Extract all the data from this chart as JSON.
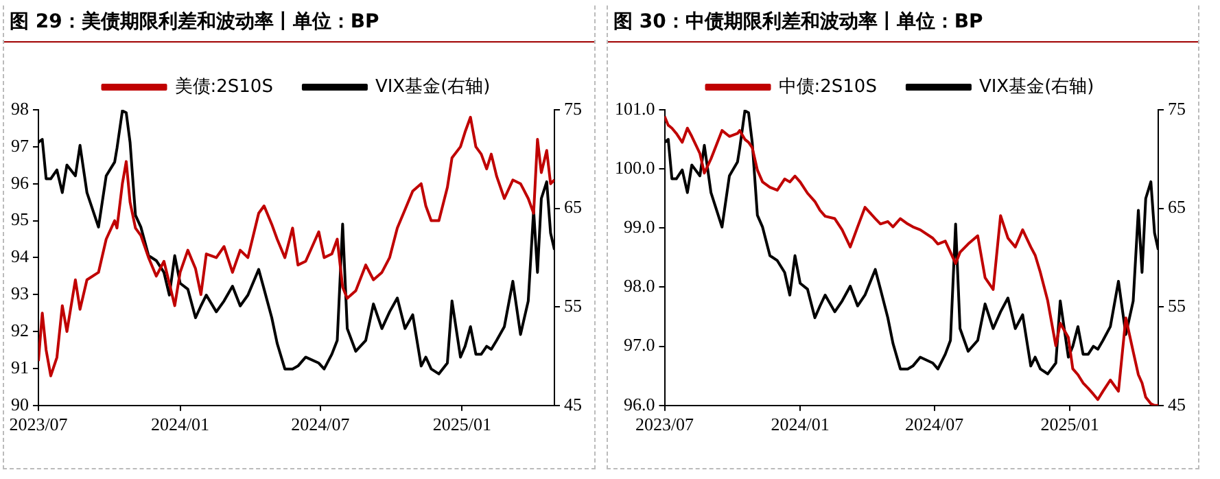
{
  "chart_data": [
    {
      "type": "line",
      "title": "图 29：美债期限利差和波动率丨单位：BP",
      "legend": "top",
      "grid": false,
      "marker": "none",
      "line_style": "solid",
      "x": [
        "2023-07-01",
        "2023-07-06",
        "2023-07-11",
        "2023-07-17",
        "2023-07-25",
        "2023-08-01",
        "2023-08-07",
        "2023-08-18",
        "2023-08-24",
        "2023-09-02",
        "2023-09-17",
        "2023-09-27",
        "2023-10-08",
        "2023-10-11",
        "2023-10-18",
        "2023-10-23",
        "2023-10-28",
        "2023-11-04",
        "2023-11-11",
        "2023-11-21",
        "2023-12-01",
        "2023-12-11",
        "2023-12-18",
        "2023-12-25",
        "2024-01-01",
        "2024-01-11",
        "2024-01-21",
        "2024-01-28",
        "2024-02-04",
        "2024-02-17",
        "2024-02-27",
        "2024-03-09",
        "2024-03-19",
        "2024-03-29",
        "2024-04-12",
        "2024-04-19",
        "2024-04-29",
        "2024-05-06",
        "2024-05-16",
        "2024-05-26",
        "2024-06-02",
        "2024-06-12",
        "2024-06-29",
        "2024-07-06",
        "2024-07-16",
        "2024-07-23",
        "2024-07-30",
        "2024-08-05",
        "2024-08-16",
        "2024-08-29",
        "2024-09-08",
        "2024-09-19",
        "2024-09-29",
        "2024-10-09",
        "2024-10-19",
        "2024-10-29",
        "2024-11-09",
        "2024-11-15",
        "2024-11-22",
        "2024-12-02",
        "2024-12-13",
        "2024-12-19",
        "2024-12-30",
        "2025-01-05",
        "2025-01-12",
        "2025-01-19",
        "2025-01-26",
        "2025-02-02",
        "2025-02-08",
        "2025-02-15",
        "2025-02-25",
        "2025-03-08",
        "2025-03-18",
        "2025-03-28",
        "2025-04-04",
        "2025-04-09",
        "2025-04-14",
        "2025-04-21",
        "2025-04-26",
        "2025-05-01"
      ],
      "xlim": [
        "2023-07-01",
        "2025-05-01"
      ],
      "xticks": [
        {
          "value": "2023-07-01",
          "label": "2023/07"
        },
        {
          "value": "2024-01-01",
          "label": "2024/01"
        },
        {
          "value": "2024-07-01",
          "label": "2024/07"
        },
        {
          "value": "2025-01-01",
          "label": "2025/01"
        }
      ],
      "ylim": [
        90,
        98
      ],
      "yticks": [
        90,
        91,
        92,
        93,
        94,
        95,
        96,
        97,
        98
      ],
      "y2lim": [
        45,
        75
      ],
      "y2ticks": [
        45,
        55,
        65,
        75
      ],
      "series": [
        {
          "name": "美债:2S10S",
          "color": "#c00000",
          "values": [
            91.2,
            92.5,
            91.5,
            90.8,
            91.3,
            92.7,
            92.0,
            93.4,
            92.6,
            93.4,
            93.6,
            94.5,
            95.0,
            94.8,
            96.0,
            96.6,
            95.5,
            94.8,
            94.6,
            94.0,
            93.5,
            93.9,
            93.3,
            92.7,
            93.6,
            94.2,
            93.7,
            93.0,
            94.1,
            94.0,
            94.3,
            93.6,
            94.2,
            94.0,
            95.2,
            95.4,
            94.9,
            94.5,
            94.0,
            94.8,
            93.8,
            93.9,
            94.7,
            94.0,
            94.1,
            94.5,
            93.2,
            92.9,
            93.1,
            93.8,
            93.4,
            93.6,
            94.0,
            94.8,
            95.3,
            95.8,
            96.0,
            95.4,
            95.0,
            95.0,
            95.9,
            96.7,
            97.0,
            97.4,
            97.8,
            97.0,
            96.8,
            96.4,
            96.8,
            96.2,
            95.6,
            96.1,
            96.0,
            95.6,
            95.2,
            97.2,
            96.3,
            96.9,
            96.0,
            96.1
          ]
        },
        {
          "name": "VIX基金(右轴)",
          "color": "#000000",
          "axis": "y2",
          "values": [
            71.7,
            72.0,
            68.0,
            68.0,
            68.9,
            66.6,
            69.4,
            68.3,
            71.4,
            66.6,
            63.1,
            68.3,
            69.7,
            71.1,
            74.9,
            74.7,
            71.7,
            64.3,
            63.1,
            60.2,
            59.7,
            58.5,
            56.2,
            60.2,
            57.4,
            56.8,
            53.9,
            55.1,
            56.2,
            54.5,
            55.6,
            57.1,
            55.1,
            56.2,
            58.8,
            56.8,
            53.9,
            51.3,
            48.7,
            48.7,
            49.0,
            49.9,
            49.3,
            48.7,
            50.2,
            51.6,
            63.4,
            52.8,
            50.5,
            51.6,
            55.3,
            52.8,
            54.5,
            55.9,
            52.8,
            54.2,
            49.0,
            49.9,
            48.7,
            48.2,
            49.3,
            55.6,
            49.9,
            51.0,
            53.0,
            50.2,
            50.2,
            51.0,
            50.7,
            51.6,
            53.0,
            57.6,
            52.2,
            55.6,
            64.8,
            58.5,
            66.0,
            67.7,
            62.5,
            60.8
          ]
        }
      ]
    },
    {
      "type": "line",
      "title": "图 30：中债期限利差和波动率丨单位：BP",
      "legend": "top",
      "grid": false,
      "marker": "none",
      "line_style": "solid",
      "x": [
        "2023-07-01",
        "2023-07-06",
        "2023-07-11",
        "2023-07-17",
        "2023-07-25",
        "2023-08-01",
        "2023-08-07",
        "2023-08-18",
        "2023-08-24",
        "2023-09-02",
        "2023-09-17",
        "2023-09-27",
        "2023-10-08",
        "2023-10-11",
        "2023-10-18",
        "2023-10-23",
        "2023-10-28",
        "2023-11-04",
        "2023-11-11",
        "2023-11-21",
        "2023-12-01",
        "2023-12-11",
        "2023-12-18",
        "2023-12-25",
        "2024-01-01",
        "2024-01-11",
        "2024-01-21",
        "2024-01-28",
        "2024-02-04",
        "2024-02-17",
        "2024-02-27",
        "2024-03-09",
        "2024-03-19",
        "2024-03-29",
        "2024-04-12",
        "2024-04-19",
        "2024-04-29",
        "2024-05-06",
        "2024-05-16",
        "2024-05-26",
        "2024-06-02",
        "2024-06-12",
        "2024-06-29",
        "2024-07-06",
        "2024-07-16",
        "2024-07-23",
        "2024-07-30",
        "2024-08-05",
        "2024-08-16",
        "2024-08-29",
        "2024-09-08",
        "2024-09-19",
        "2024-09-29",
        "2024-10-09",
        "2024-10-19",
        "2024-10-29",
        "2024-11-09",
        "2024-11-15",
        "2024-11-22",
        "2024-12-02",
        "2024-12-13",
        "2024-12-19",
        "2024-12-30",
        "2025-01-05",
        "2025-01-12",
        "2025-01-19",
        "2025-01-26",
        "2025-02-02",
        "2025-02-08",
        "2025-02-15",
        "2025-02-25",
        "2025-03-08",
        "2025-03-18",
        "2025-03-28",
        "2025-04-04",
        "2025-04-09",
        "2025-04-14",
        "2025-04-21",
        "2025-04-26",
        "2025-05-01"
      ],
      "xlim": [
        "2023-07-01",
        "2025-05-01"
      ],
      "xticks": [
        {
          "value": "2023-07-01",
          "label": "2023/07"
        },
        {
          "value": "2024-01-01",
          "label": "2024/01"
        },
        {
          "value": "2024-07-01",
          "label": "2024/07"
        },
        {
          "value": "2025-01-01",
          "label": "2025/01"
        }
      ],
      "ylim": [
        96,
        101
      ],
      "yticks": [
        {
          "value": 96,
          "label": "96.0"
        },
        {
          "value": 97,
          "label": "97.0"
        },
        {
          "value": 98,
          "label": "98.0"
        },
        {
          "value": 99,
          "label": "99.0"
        },
        {
          "value": 100,
          "label": "100.0"
        },
        {
          "value": 101,
          "label": "101.0"
        }
      ],
      "y2lim": [
        45,
        75
      ],
      "y2ticks": [
        45,
        55,
        65,
        75
      ],
      "series": [
        {
          "name": "中债:2S10S",
          "color": "#c00000",
          "values": [
            100.89,
            100.74,
            100.69,
            100.6,
            100.45,
            100.69,
            100.55,
            100.26,
            99.93,
            100.17,
            100.65,
            100.55,
            100.6,
            100.65,
            100.5,
            100.45,
            100.36,
            99.98,
            99.78,
            99.69,
            99.64,
            99.83,
            99.78,
            99.88,
            99.78,
            99.59,
            99.45,
            99.3,
            99.2,
            99.16,
            98.97,
            98.68,
            99.02,
            99.35,
            99.16,
            99.07,
            99.11,
            99.02,
            99.16,
            99.07,
            99.02,
            98.97,
            98.83,
            98.73,
            98.78,
            98.59,
            98.4,
            98.59,
            98.73,
            98.87,
            98.16,
            97.96,
            99.21,
            98.83,
            98.68,
            98.97,
            98.68,
            98.54,
            98.25,
            97.77,
            97.01,
            97.39,
            97.15,
            96.62,
            96.52,
            96.38,
            96.29,
            96.19,
            96.1,
            96.24,
            96.43,
            96.24,
            97.48,
            96.91,
            96.52,
            96.38,
            96.14,
            96.03,
            96.0,
            96.0
          ]
        },
        {
          "name": "VIX基金(右轴)",
          "color": "#000000",
          "axis": "y2",
          "values": [
            71.7,
            72.0,
            68.0,
            68.0,
            68.9,
            66.6,
            69.4,
            68.3,
            71.4,
            66.6,
            63.1,
            68.3,
            69.7,
            71.1,
            74.9,
            74.7,
            71.7,
            64.3,
            63.1,
            60.2,
            59.7,
            58.5,
            56.2,
            60.2,
            57.4,
            56.8,
            53.9,
            55.1,
            56.2,
            54.5,
            55.6,
            57.1,
            55.1,
            56.2,
            58.8,
            56.8,
            53.9,
            51.3,
            48.7,
            48.7,
            49.0,
            49.9,
            49.3,
            48.7,
            50.2,
            51.6,
            63.4,
            52.8,
            50.5,
            51.6,
            55.3,
            52.8,
            54.5,
            55.9,
            52.8,
            54.2,
            49.0,
            49.9,
            48.7,
            48.2,
            49.3,
            55.6,
            49.9,
            51.0,
            53.0,
            50.2,
            50.2,
            51.0,
            50.7,
            51.6,
            53.0,
            57.6,
            52.2,
            55.6,
            64.8,
            58.5,
            66.0,
            67.7,
            62.5,
            60.8
          ]
        }
      ]
    }
  ]
}
